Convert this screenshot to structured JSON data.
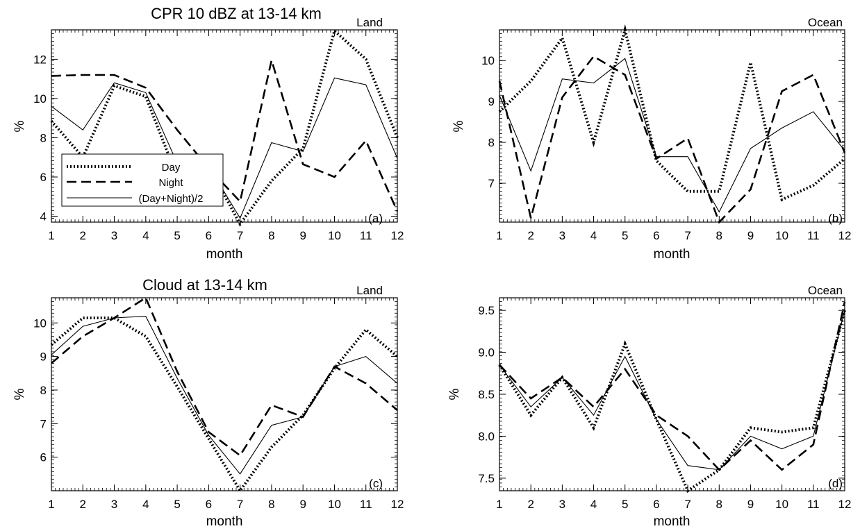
{
  "figure_title": "",
  "legend": {
    "entries": [
      {
        "label": "Day",
        "style": "dotted"
      },
      {
        "label": "Night",
        "style": "dashed"
      },
      {
        "label": "(Day+Night)/2",
        "style": "solid"
      }
    ]
  },
  "chart_data": [
    {
      "type": "line",
      "title": "CPR 10 dBZ at 13-14 km",
      "region_label": "Land",
      "panel_label": "(a)",
      "xlabel": "month",
      "ylabel": "%",
      "x": [
        1,
        2,
        3,
        4,
        5,
        6,
        7,
        8,
        9,
        10,
        11,
        12
      ],
      "xlim": [
        1,
        12
      ],
      "ylim": [
        3.7,
        13.5
      ],
      "yticks": [
        4,
        6,
        8,
        10,
        12
      ],
      "ytick_labels": [
        "4",
        "6",
        "8",
        "10",
        "12"
      ],
      "series": [
        {
          "name": "Day",
          "style": "dotted",
          "values": [
            8.85,
            7.0,
            10.65,
            10.1,
            6.0,
            6.55,
            3.6,
            5.8,
            7.45,
            13.45,
            12.0,
            8.0
          ]
        },
        {
          "name": "Night",
          "style": "dashed",
          "values": [
            11.15,
            11.2,
            11.2,
            10.55,
            8.4,
            6.45,
            4.75,
            11.95,
            6.65,
            6.0,
            7.85,
            4.25
          ]
        },
        {
          "name": "(Day+Night)/2",
          "style": "solid",
          "values": [
            9.6,
            8.4,
            10.8,
            10.3,
            6.7,
            6.55,
            3.9,
            7.75,
            7.3,
            11.05,
            10.7,
            6.95
          ]
        }
      ]
    },
    {
      "type": "line",
      "title": "",
      "region_label": "Ocean",
      "panel_label": "(b)",
      "xlabel": "month",
      "ylabel": "%",
      "x": [
        1,
        2,
        3,
        4,
        5,
        6,
        7,
        8,
        9,
        10,
        11,
        12
      ],
      "xlim": [
        1,
        12
      ],
      "ylim": [
        6.05,
        10.75
      ],
      "yticks": [
        7,
        8,
        9,
        10
      ],
      "ytick_labels": [
        "7",
        "8",
        "9",
        "10"
      ],
      "series": [
        {
          "name": "Day",
          "style": "dotted",
          "values": [
            8.75,
            9.5,
            10.55,
            8.0,
            10.75,
            7.55,
            6.8,
            6.8,
            9.95,
            6.6,
            6.95,
            7.6
          ]
        },
        {
          "name": "Night",
          "style": "dashed",
          "values": [
            9.5,
            6.15,
            9.1,
            10.1,
            9.65,
            7.6,
            8.1,
            6.05,
            6.85,
            9.25,
            9.65,
            7.75
          ]
        },
        {
          "name": "(Day+Night)/2",
          "style": "solid",
          "values": [
            9.15,
            7.3,
            9.55,
            9.45,
            10.05,
            7.65,
            7.65,
            6.3,
            7.85,
            8.35,
            8.75,
            7.8
          ]
        }
      ]
    },
    {
      "type": "line",
      "title": "Cloud at 13-14 km",
      "region_label": "Land",
      "panel_label": "(c)",
      "xlabel": "month",
      "ylabel": "%",
      "x": [
        1,
        2,
        3,
        4,
        5,
        6,
        7,
        8,
        9,
        10,
        11,
        12
      ],
      "xlim": [
        1,
        12
      ],
      "ylim": [
        5.0,
        10.75
      ],
      "yticks": [
        6,
        7,
        8,
        9,
        10
      ],
      "ytick_labels": [
        "6",
        "7",
        "8",
        "9",
        "10"
      ],
      "series": [
        {
          "name": "Day",
          "style": "dotted",
          "values": [
            9.35,
            10.15,
            10.15,
            9.6,
            8.1,
            6.55,
            5.0,
            6.3,
            7.25,
            8.65,
            9.8,
            9.0
          ]
        },
        {
          "name": "Night",
          "style": "dashed",
          "values": [
            8.8,
            9.6,
            10.15,
            10.75,
            8.55,
            6.75,
            6.05,
            7.55,
            7.2,
            8.7,
            8.2,
            7.4
          ]
        },
        {
          "name": "(Day+Night)/2",
          "style": "solid",
          "values": [
            9.05,
            9.9,
            10.15,
            10.2,
            8.35,
            6.65,
            5.5,
            6.95,
            7.2,
            8.7,
            9.0,
            8.2
          ]
        }
      ]
    },
    {
      "type": "line",
      "title": "",
      "region_label": "Ocean",
      "panel_label": "(d)",
      "xlabel": "month",
      "ylabel": "%",
      "x": [
        1,
        2,
        3,
        4,
        5,
        6,
        7,
        8,
        9,
        10,
        11,
        12
      ],
      "xlim": [
        1,
        12
      ],
      "ylim": [
        7.35,
        9.65
      ],
      "yticks": [
        7.5,
        8.0,
        8.5,
        9.0,
        9.5
      ],
      "ytick_labels": [
        "7.5",
        "8.0",
        "8.5",
        "9.0",
        "9.5"
      ],
      "series": [
        {
          "name": "Day",
          "style": "dotted",
          "values": [
            8.85,
            8.25,
            8.7,
            8.1,
            9.1,
            8.2,
            7.35,
            7.6,
            8.1,
            8.05,
            8.1,
            9.5
          ]
        },
        {
          "name": "Night",
          "style": "dashed",
          "values": [
            8.85,
            8.45,
            8.7,
            8.35,
            8.8,
            8.25,
            8.0,
            7.6,
            7.95,
            7.6,
            7.9,
            9.6
          ]
        },
        {
          "name": "(Day+Night)/2",
          "style": "solid",
          "values": [
            8.85,
            8.35,
            8.7,
            8.25,
            8.95,
            8.2,
            7.65,
            7.6,
            8.0,
            7.85,
            8.0,
            9.5
          ]
        }
      ]
    }
  ]
}
